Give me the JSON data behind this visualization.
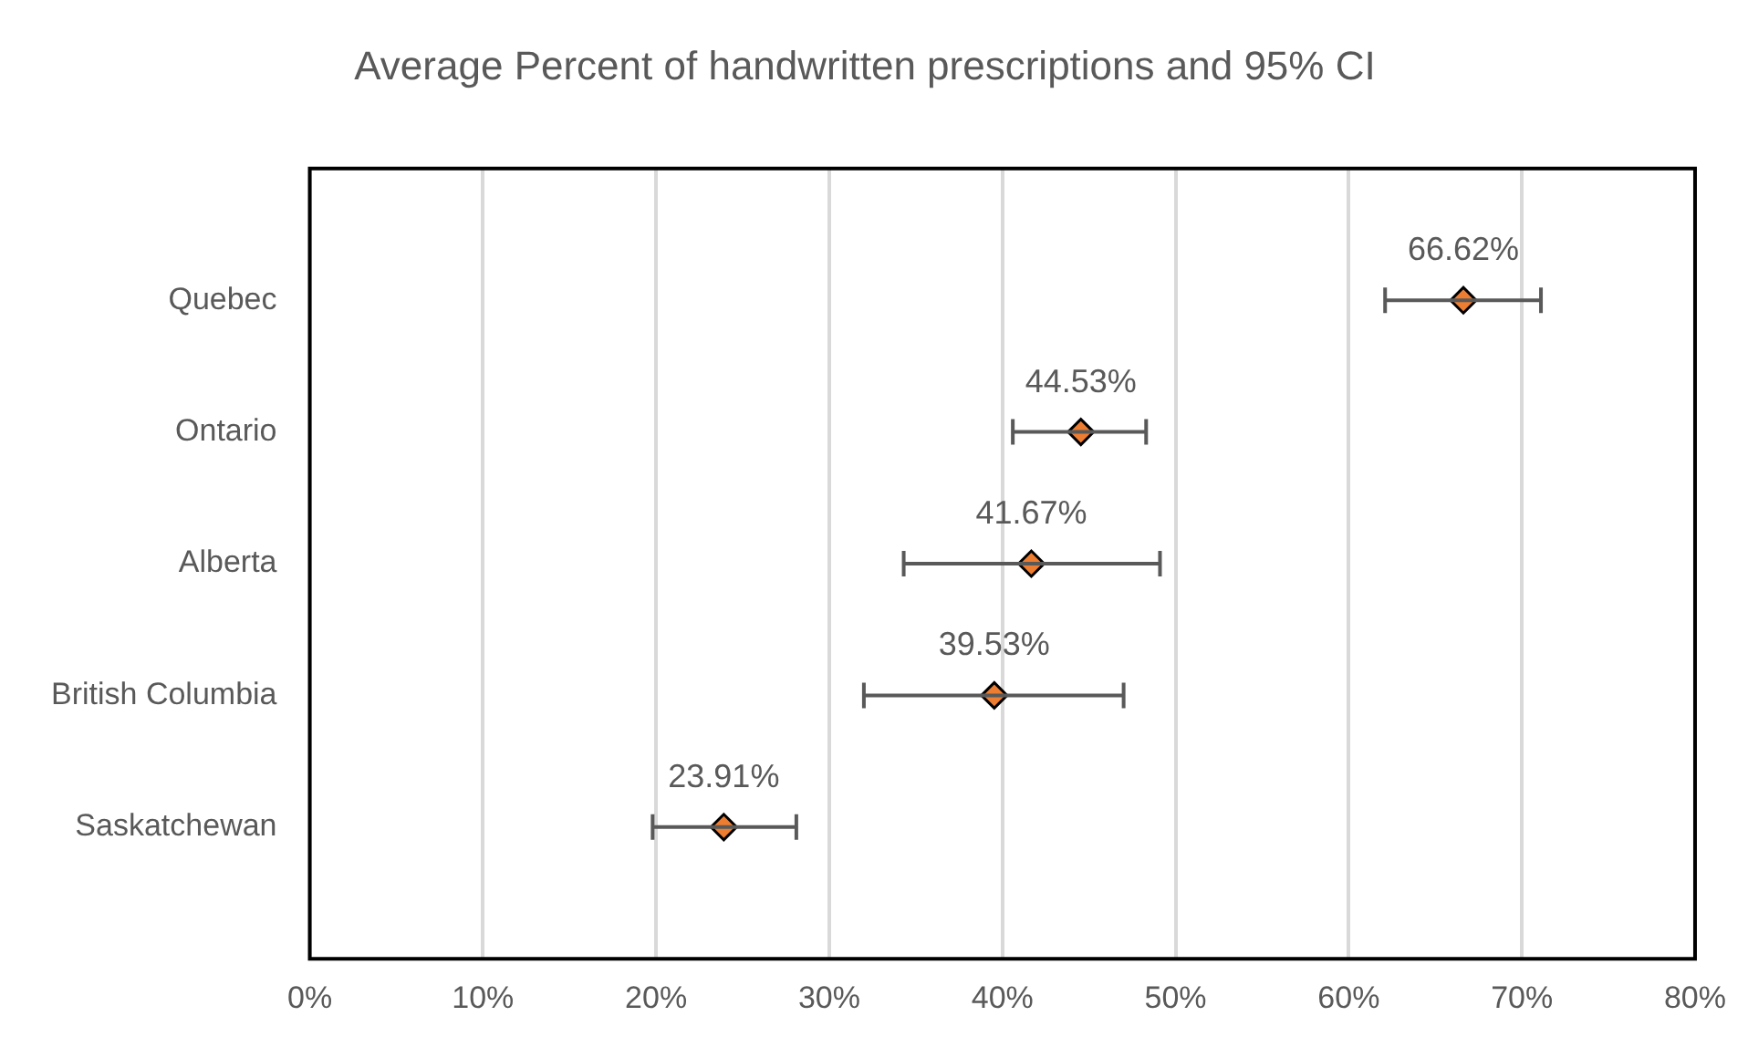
{
  "chart_data": {
    "type": "scatter",
    "orientation": "horizontal",
    "title": "Average Percent of handwritten prescriptions and 95% CI",
    "categories": [
      "Quebec",
      "Ontario",
      "Alberta",
      "British Columbia",
      "Saskatchewan"
    ],
    "values": [
      66.62,
      44.53,
      41.67,
      39.53,
      23.91
    ],
    "errors": [
      [
        62.1,
        71.1
      ],
      [
        40.6,
        48.3
      ],
      [
        34.3,
        49.1
      ],
      [
        32.0,
        47.0
      ],
      [
        19.8,
        28.1
      ]
    ],
    "color": "#ed7d31",
    "marker": "diamond",
    "data_labels": true,
    "value_labels": [
      "66.62%",
      "44.53%",
      "41.67%",
      "39.53%",
      "23.91%"
    ],
    "xlim": [
      0,
      80
    ],
    "xticks": [
      {
        "value": 0,
        "label": "0%"
      },
      {
        "value": 10,
        "label": "10%"
      },
      {
        "value": 20,
        "label": "20%"
      },
      {
        "value": 30,
        "label": "30%"
      },
      {
        "value": 40,
        "label": "40%"
      },
      {
        "value": 50,
        "label": "50%"
      },
      {
        "value": 60,
        "label": "60%"
      },
      {
        "value": 70,
        "label": "70%"
      },
      {
        "value": 80,
        "label": "80%"
      }
    ],
    "grid": "x",
    "legend": false
  }
}
